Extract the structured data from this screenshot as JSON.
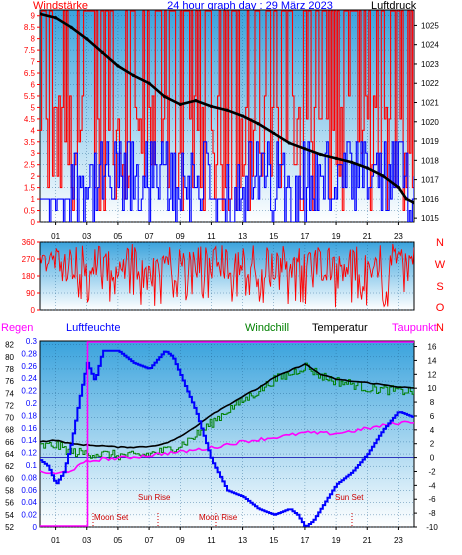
{
  "header": {
    "left_label": "Windstärke",
    "title": "24 hour graph day : 29 März 2023",
    "right_label": "Luftdruck"
  },
  "chart_data": [
    {
      "type": "line",
      "name": "wind-pressure-panel",
      "x_ticks": [
        "01",
        "03",
        "05",
        "07",
        "09",
        "11",
        "13",
        "15",
        "17",
        "19",
        "21",
        "23"
      ],
      "left_axis_ticks": [
        "0",
        "0.5",
        "1",
        "1.5",
        "2",
        "2.5",
        "3",
        "3.5",
        "4",
        "4.5",
        "5",
        "5.5",
        "6",
        "6.5",
        "7",
        "7.5",
        "8",
        "8.5",
        "9"
      ],
      "right_axis_ticks": [
        "1015",
        "1016",
        "1017",
        "1018",
        "1019",
        "1020",
        "1021",
        "1022",
        "1023",
        "1024",
        "1025"
      ],
      "ylim_left": [
        0,
        9.25
      ],
      "ylim_right": [
        1014.8,
        1025.8
      ],
      "series": [
        {
          "name": "Luftdruck",
          "color": "#000000",
          "x": [
            0,
            1,
            2,
            3,
            4,
            5,
            6,
            7,
            8,
            9,
            10,
            11,
            12,
            13,
            14,
            15,
            16,
            17,
            18,
            19,
            20,
            21,
            22,
            23,
            23.5,
            24
          ],
          "values": [
            1025.6,
            1025.4,
            1024.9,
            1024.3,
            1023.6,
            1022.9,
            1022.4,
            1022.0,
            1021.3,
            1020.9,
            1021.1,
            1020.8,
            1020.6,
            1020.3,
            1019.9,
            1019.4,
            1018.9,
            1018.6,
            1018.3,
            1018.1,
            1017.9,
            1017.6,
            1017.2,
            1016.6,
            1016.0,
            1015.8
          ]
        }
      ]
    },
    {
      "type": "line",
      "name": "wind-direction-panel",
      "x_ticks": [
        "01",
        "03",
        "05",
        "07",
        "09",
        "11",
        "13",
        "15",
        "17",
        "19",
        "21",
        "23"
      ],
      "left_axis_ticks": [
        "0",
        "90",
        "180",
        "270",
        "360"
      ],
      "right_axis_letters": [
        "N",
        "W",
        "S",
        "O",
        "N"
      ],
      "ylim": [
        0,
        360
      ]
    },
    {
      "type": "line",
      "name": "humidity-temperature-panel",
      "x_ticks": [
        "01",
        "03",
        "05",
        "07",
        "09",
        "11",
        "13",
        "15",
        "17",
        "19",
        "21",
        "23"
      ],
      "rain_axis_ticks": [
        "0",
        "0.02",
        "0.04",
        "0.06",
        "0.08",
        "0.1",
        "0.12",
        "0.14",
        "0.16",
        "0.18",
        "0.2",
        "0.22",
        "0.24",
        "0.26",
        "0.28",
        "0.3"
      ],
      "humidity_axis_ticks": [
        "52",
        "54",
        "56",
        "58",
        "60",
        "62",
        "64",
        "66",
        "68",
        "70",
        "72",
        "74",
        "76",
        "78",
        "80",
        "82"
      ],
      "temperature_axis_ticks": [
        "-10",
        "-8",
        "-6",
        "-4",
        "-2",
        "0",
        "2",
        "4",
        "6",
        "8",
        "10",
        "12",
        "14",
        "16"
      ],
      "ylim_humidity": [
        52,
        82.6
      ],
      "ylim_temperature": [
        -10,
        16.8
      ],
      "ylim_rain": [
        0,
        0.3
      ],
      "legend": [
        "Regen",
        "Luftfeuchte",
        "Windchill",
        "Temperatur",
        "Taupunkt"
      ],
      "series": [
        {
          "name": "Luftfeuchte",
          "color": "#0000ff",
          "x": [
            0,
            0.5,
            1,
            1.5,
            2,
            2.5,
            3,
            3.5,
            4,
            5,
            6,
            7,
            8,
            8.5,
            9,
            10,
            10.5,
            11,
            12,
            13,
            14,
            15,
            16,
            16.5,
            17,
            17.5,
            18,
            19,
            20,
            21,
            22,
            23,
            24
          ],
          "values": [
            63,
            62,
            59,
            61,
            66,
            73,
            79,
            76,
            81,
            81,
            79,
            78,
            81,
            80,
            77,
            71,
            67,
            63,
            58,
            57,
            55,
            54,
            55,
            54,
            52,
            53,
            55,
            59,
            61,
            64,
            68,
            71,
            70
          ]
        },
        {
          "name": "Temperatur",
          "color": "#000000",
          "x": [
            0,
            1,
            2,
            3,
            4,
            5,
            6,
            7,
            8,
            9,
            10,
            11,
            12,
            13,
            14,
            15,
            16,
            17,
            18,
            19,
            20,
            21,
            22,
            23,
            24
          ],
          "values": [
            2.3,
            2.5,
            2.0,
            1.8,
            1.7,
            1.5,
            1.5,
            1.6,
            2.0,
            3.0,
            4.5,
            6.2,
            7.5,
            8.8,
            10.0,
            11.5,
            12.5,
            13.5,
            12.0,
            11.3,
            11.0,
            10.8,
            10.5,
            10.2,
            10.0
          ]
        },
        {
          "name": "Windchill",
          "color": "#008000",
          "x": [
            0,
            1,
            2,
            3,
            4,
            5,
            6,
            7,
            8,
            9,
            10,
            11,
            12,
            13,
            14,
            15,
            16,
            17,
            18,
            19,
            20,
            21,
            22,
            23,
            24
          ],
          "values": [
            1.6,
            1.8,
            0.8,
            0.6,
            0.5,
            0.3,
            0.2,
            0.5,
            1.0,
            1.8,
            3.2,
            5.0,
            6.8,
            8.2,
            9.6,
            11.2,
            12.0,
            13.2,
            11.8,
            11.0,
            10.6,
            10.0,
            9.8,
            9.6,
            9.6
          ]
        },
        {
          "name": "Taupunkt",
          "color": "#ff00ff",
          "x": [
            0,
            1,
            2,
            3,
            4,
            5,
            6,
            7,
            8,
            9,
            10,
            11,
            12,
            13,
            14,
            15,
            16,
            17,
            18,
            19,
            20,
            21,
            22,
            23,
            24
          ],
          "values": [
            -2.0,
            -2.4,
            -1.8,
            -0.6,
            -0.2,
            -0.1,
            0.1,
            0.3,
            0.6,
            0.8,
            1.1,
            1.4,
            1.9,
            2.3,
            2.6,
            2.9,
            3.2,
            3.6,
            3.5,
            3.5,
            3.8,
            4.2,
            4.6,
            5.0,
            5.2
          ]
        }
      ],
      "annotations": [
        {
          "text": "Moon Set",
          "x": 3
        },
        {
          "text": "Sun Rise",
          "x": 7
        },
        {
          "text": "Moon Rise",
          "x": 11
        },
        {
          "text": "Sun Set",
          "x": 20
        }
      ]
    }
  ],
  "labels": {
    "regen": "Regen",
    "luftfeuchte": "Luftfeuchte",
    "windchill": "Windchill",
    "temperatur": "Temperatur",
    "taupunkt": "Taupunkt",
    "moon_set": "Moon Set",
    "sun_rise": "Sun Rise",
    "moon_rise": "Moon Rise",
    "sun_set": "Sun Set"
  },
  "colors": {
    "panel_top": "#3aa3dd",
    "panel_bottom": "#ffffff",
    "wind_red": "#ff0000",
    "wind_blue": "#0000ff",
    "pressure": "#000000",
    "humidity": "#0000ff",
    "temperature": "#000000",
    "windchill": "#008000",
    "dewpoint": "#ff00ff",
    "rain": "#ff00ff",
    "axis_blue": "#0000ff",
    "axis_red": "#ff0000"
  }
}
